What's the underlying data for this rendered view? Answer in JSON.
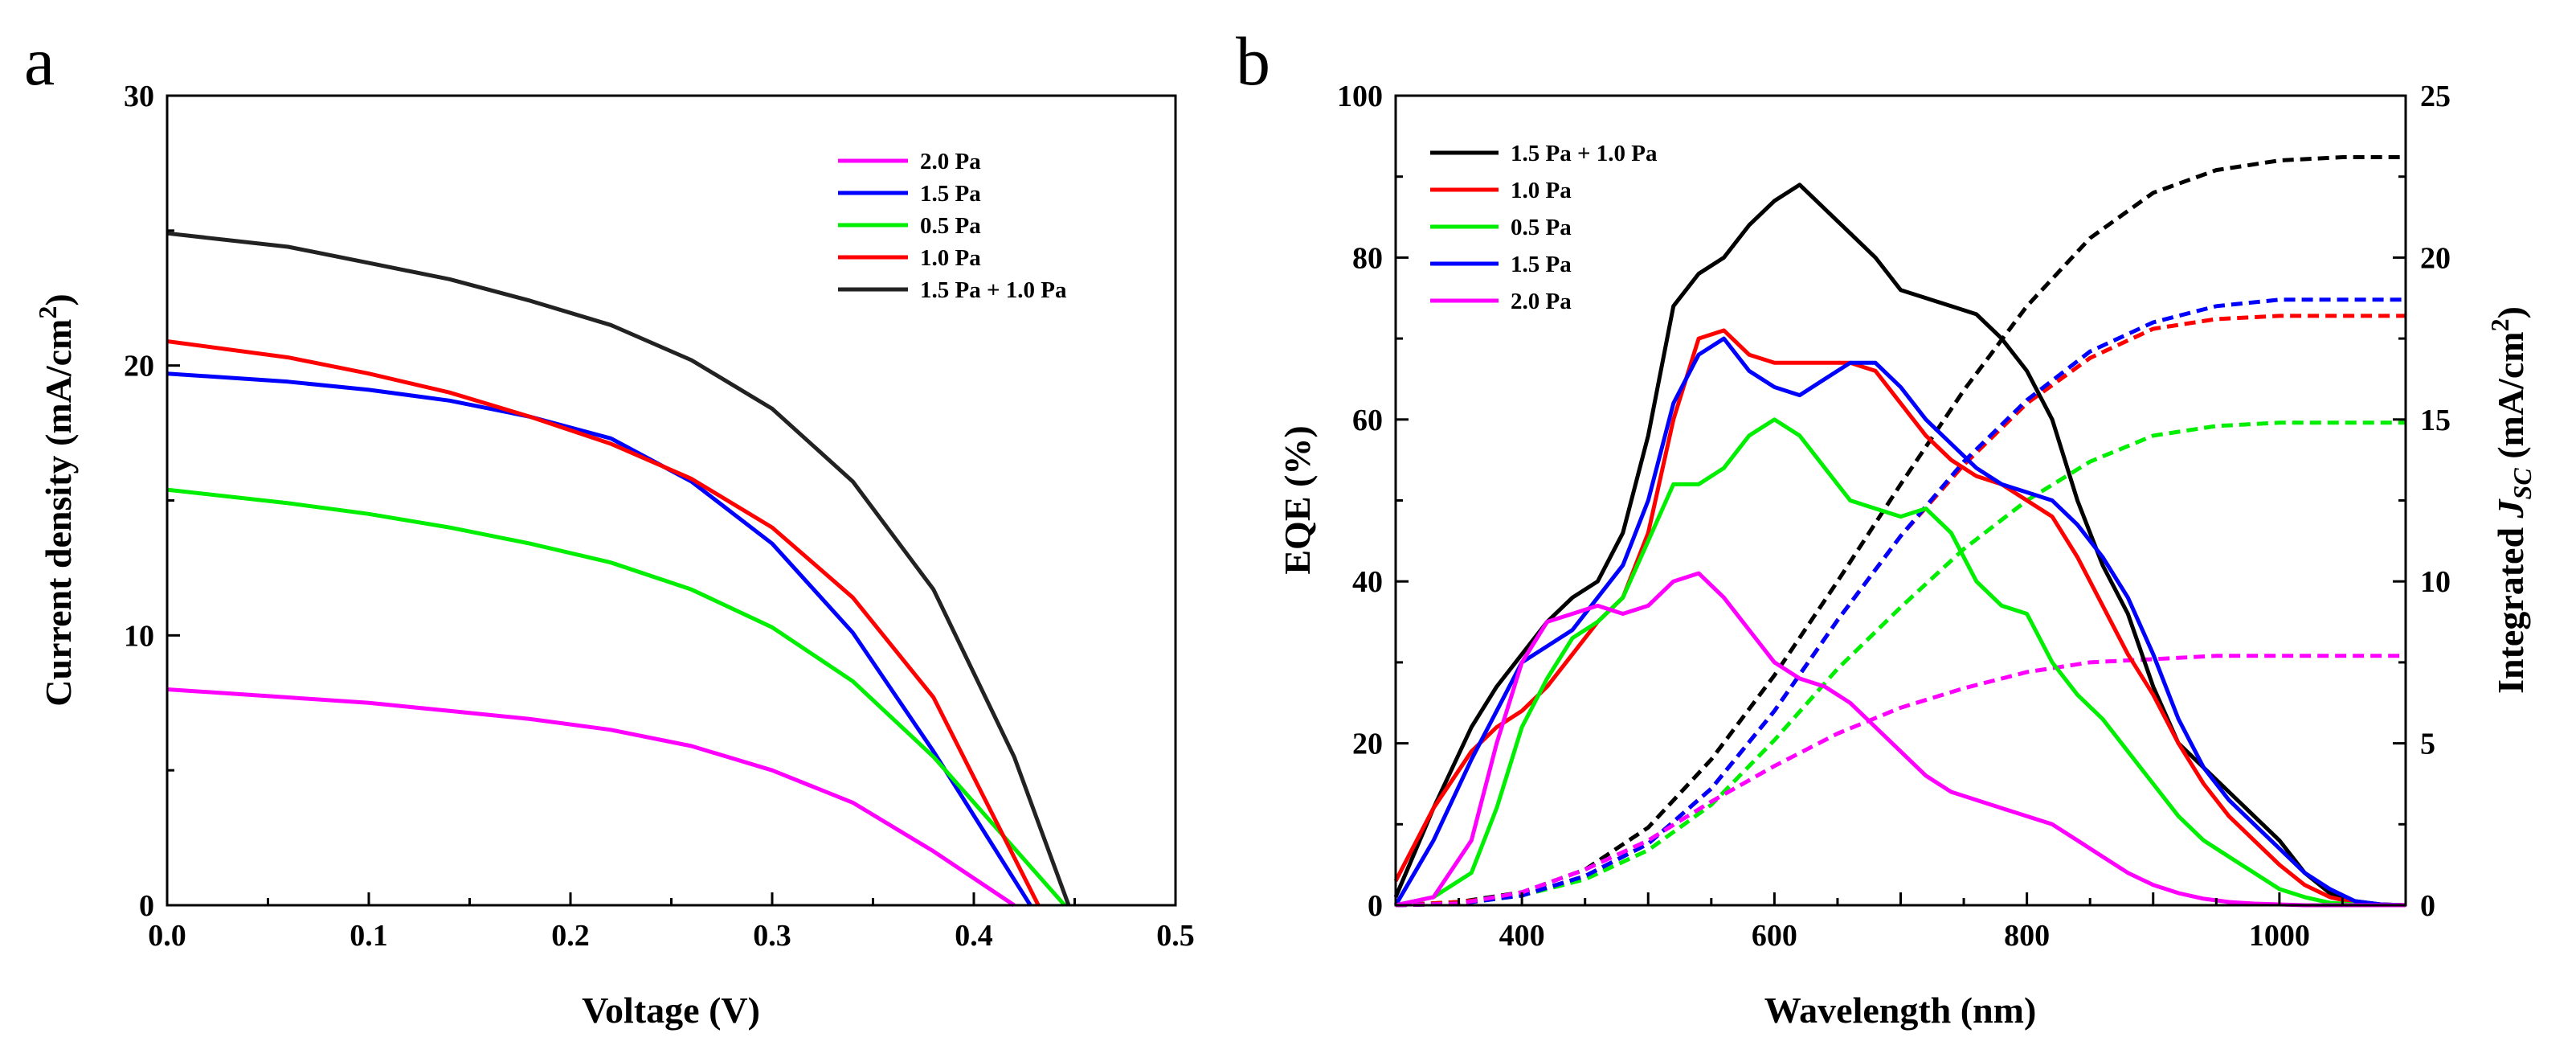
{
  "panels": [
    {
      "label": "a",
      "chart_data": {
        "type": "line",
        "title": "",
        "xlabel": "Voltage (V)",
        "ylabel": "Current density (mA/cm",
        "ylabel_sup": "2",
        "ylabel_end": ")",
        "xlim": [
          0,
          0.5
        ],
        "ylim": [
          0,
          30
        ],
        "xticks": [
          "0.0",
          "0.1",
          "0.2",
          "0.3",
          "0.4",
          "0.5"
        ],
        "yticks": [
          "0",
          "10",
          "20",
          "30"
        ],
        "legend_position": "top-right",
        "grid": false,
        "series": [
          {
            "name": "2.0 Pa",
            "color": "#ff00ff",
            "x": [
              0,
              0.06,
              0.1,
              0.14,
              0.18,
              0.22,
              0.26,
              0.3,
              0.34,
              0.38,
              0.42
            ],
            "y": [
              8.0,
              7.7,
              7.5,
              7.2,
              6.9,
              6.5,
              5.9,
              5.0,
              3.8,
              2.0,
              0
            ]
          },
          {
            "name": "1.5 Pa",
            "color": "#0000ff",
            "x": [
              0,
              0.06,
              0.1,
              0.14,
              0.18,
              0.22,
              0.26,
              0.3,
              0.34,
              0.38,
              0.428
            ],
            "y": [
              19.7,
              19.4,
              19.1,
              18.7,
              18.1,
              17.3,
              15.7,
              13.4,
              10.1,
              5.7,
              0
            ]
          },
          {
            "name": "0.5 Pa",
            "color": "#00ee00",
            "x": [
              0,
              0.06,
              0.1,
              0.14,
              0.18,
              0.22,
              0.26,
              0.3,
              0.34,
              0.38,
              0.445
            ],
            "y": [
              15.4,
              14.9,
              14.5,
              14.0,
              13.4,
              12.7,
              11.7,
              10.3,
              8.3,
              5.5,
              0
            ]
          },
          {
            "name": "1.0 Pa",
            "color": "#ff0000",
            "x": [
              0,
              0.06,
              0.1,
              0.14,
              0.18,
              0.22,
              0.26,
              0.3,
              0.34,
              0.38,
              0.432
            ],
            "y": [
              20.9,
              20.3,
              19.7,
              19.0,
              18.1,
              17.1,
              15.8,
              14.0,
              11.4,
              7.7,
              0
            ]
          },
          {
            "name": "1.5 Pa + 1.0 Pa",
            "color": "#222222",
            "x": [
              0,
              0.06,
              0.1,
              0.14,
              0.18,
              0.22,
              0.26,
              0.3,
              0.34,
              0.38,
              0.42,
              0.447
            ],
            "y": [
              24.9,
              24.4,
              23.8,
              23.2,
              22.4,
              21.5,
              20.2,
              18.4,
              15.7,
              11.7,
              5.5,
              0
            ]
          }
        ]
      }
    },
    {
      "label": "b",
      "chart_data": {
        "type": "line",
        "title": "",
        "xlabel": "Wavelength (nm)",
        "ylabel": "EQE (%)",
        "y2label_prefix": "Integrated ",
        "y2label_J": "J",
        "y2label_sub": "SC",
        "y2label_unit": " (mA/cm",
        "y2label_sup": "2",
        "y2label_end": ")",
        "xlim": [
          300,
          1100
        ],
        "ylim": [
          0,
          100
        ],
        "y2lim": [
          0,
          25
        ],
        "xticks": [
          "400",
          "600",
          "800",
          "1000"
        ],
        "yticks": [
          "0",
          "20",
          "40",
          "60",
          "80",
          "100"
        ],
        "y2ticks": [
          "0",
          "5",
          "10",
          "15",
          "20",
          "25"
        ],
        "legend_position": "top-left",
        "grid": false,
        "series": [
          {
            "name": "1.5 Pa + 1.0 Pa",
            "color": "#000000",
            "eqe_x": [
              300,
              330,
              360,
              380,
              400,
              420,
              440,
              460,
              480,
              500,
              520,
              540,
              560,
              580,
              600,
              620,
              640,
              660,
              680,
              700,
              720,
              740,
              760,
              780,
              800,
              820,
              840,
              860,
              880,
              900,
              920,
              940,
              960,
              980,
              1000,
              1020,
              1040,
              1060,
              1080,
              1100
            ],
            "eqe_y": [
              1,
              12,
              22,
              27,
              31,
              35,
              38,
              40,
              46,
              58,
              74,
              78,
              80,
              84,
              87,
              89,
              86,
              83,
              80,
              76,
              75,
              74,
              73,
              70,
              66,
              60,
              50,
              42,
              36,
              27,
              20,
              17,
              14,
              11,
              8,
              4,
              1.5,
              0.5,
              0.1,
              0
            ],
            "jsc_x": [
              300,
              350,
              400,
              450,
              500,
              550,
              600,
              650,
              700,
              750,
              800,
              850,
              900,
              950,
              1000,
              1050,
              1100
            ],
            "jsc_y": [
              0,
              0.1,
              0.4,
              1.1,
              2.4,
              4.5,
              7.1,
              10.0,
              13.0,
              15.9,
              18.5,
              20.6,
              22.0,
              22.7,
              23.0,
              23.1,
              23.1
            ]
          },
          {
            "name": "1.0 Pa",
            "color": "#ff0000",
            "eqe_x": [
              300,
              330,
              360,
              380,
              400,
              420,
              440,
              460,
              480,
              500,
              520,
              540,
              560,
              580,
              600,
              620,
              640,
              660,
              680,
              700,
              720,
              740,
              760,
              780,
              800,
              820,
              840,
              860,
              880,
              900,
              920,
              940,
              960,
              980,
              1000,
              1020,
              1040,
              1060,
              1080,
              1100
            ],
            "eqe_y": [
              3,
              12,
              19,
              22,
              24,
              27,
              31,
              35,
              38,
              46,
              60,
              70,
              71,
              68,
              67,
              67,
              67,
              67,
              66,
              62,
              58,
              55,
              53,
              52,
              50,
              48,
              43,
              37,
              31,
              26,
              20,
              15,
              11,
              8,
              5,
              2.5,
              1,
              0.3,
              0.1,
              0
            ],
            "jsc_x": [
              300,
              350,
              400,
              450,
              500,
              550,
              600,
              650,
              700,
              750,
              800,
              850,
              900,
              950,
              1000,
              1050,
              1100
            ],
            "jsc_y": [
              0,
              0.1,
              0.3,
              0.9,
              1.9,
              3.6,
              6.0,
              8.8,
              11.4,
              13.6,
              15.5,
              16.9,
              17.8,
              18.1,
              18.2,
              18.2,
              18.2
            ]
          },
          {
            "name": "0.5 Pa",
            "color": "#00ee00",
            "eqe_x": [
              300,
              330,
              360,
              380,
              400,
              420,
              440,
              460,
              480,
              500,
              520,
              540,
              560,
              580,
              600,
              620,
              640,
              660,
              680,
              700,
              720,
              740,
              760,
              780,
              800,
              820,
              840,
              860,
              880,
              900,
              920,
              940,
              960,
              980,
              1000,
              1020,
              1040,
              1060,
              1080,
              1100
            ],
            "eqe_y": [
              0,
              1,
              4,
              12,
              22,
              28,
              33,
              35,
              38,
              45,
              52,
              52,
              54,
              58,
              60,
              58,
              54,
              50,
              49,
              48,
              49,
              46,
              40,
              37,
              36,
              30,
              26,
              23,
              19,
              15,
              11,
              8,
              6,
              4,
              2,
              1,
              0.3,
              0.1,
              0,
              0
            ],
            "jsc_x": [
              300,
              350,
              400,
              450,
              500,
              550,
              600,
              650,
              700,
              750,
              800,
              850,
              900,
              950,
              1000,
              1050,
              1100
            ],
            "jsc_y": [
              0,
              0.05,
              0.3,
              0.8,
              1.7,
              3.1,
              5.1,
              7.3,
              9.2,
              11.0,
              12.5,
              13.7,
              14.5,
              14.8,
              14.9,
              14.9,
              14.9
            ]
          },
          {
            "name": "1.5 Pa",
            "color": "#0000ff",
            "eqe_x": [
              300,
              330,
              360,
              380,
              400,
              420,
              440,
              460,
              480,
              500,
              520,
              540,
              560,
              580,
              600,
              620,
              640,
              660,
              680,
              700,
              720,
              740,
              760,
              780,
              800,
              820,
              840,
              860,
              880,
              900,
              920,
              940,
              960,
              980,
              1000,
              1020,
              1040,
              1060,
              1080,
              1100
            ],
            "eqe_y": [
              0,
              8,
              18,
              24,
              30,
              32,
              34,
              38,
              42,
              50,
              62,
              68,
              70,
              66,
              64,
              63,
              65,
              67,
              67,
              64,
              60,
              57,
              54,
              52,
              51,
              50,
              47,
              43,
              38,
              31,
              23,
              17,
              13,
              10,
              7,
              4,
              2,
              0.5,
              0.1,
              0
            ],
            "jsc_x": [
              300,
              350,
              400,
              450,
              500,
              550,
              600,
              650,
              700,
              750,
              800,
              850,
              900,
              950,
              1000,
              1050,
              1100
            ],
            "jsc_y": [
              0,
              0.05,
              0.3,
              0.9,
              1.9,
              3.6,
              6.0,
              8.8,
              11.4,
              13.7,
              15.6,
              17.1,
              18.0,
              18.5,
              18.7,
              18.7,
              18.7
            ]
          },
          {
            "name": "2.0 Pa",
            "color": "#ff00ff",
            "eqe_x": [
              300,
              330,
              360,
              380,
              400,
              420,
              440,
              460,
              480,
              500,
              520,
              540,
              560,
              580,
              600,
              620,
              640,
              660,
              680,
              700,
              720,
              740,
              760,
              780,
              800,
              820,
              840,
              860,
              880,
              900,
              920,
              940,
              960,
              980,
              1000,
              1020,
              1040,
              1060,
              1080,
              1100
            ],
            "eqe_y": [
              0,
              1,
              8,
              20,
              30,
              35,
              36,
              37,
              36,
              37,
              40,
              41,
              38,
              34,
              30,
              28,
              27,
              25,
              22,
              19,
              16,
              14,
              13,
              12,
              11,
              10,
              8,
              6,
              4,
              2.5,
              1.5,
              0.8,
              0.4,
              0.2,
              0.1,
              0,
              0,
              0,
              0,
              0
            ],
            "jsc_x": [
              300,
              350,
              400,
              450,
              500,
              550,
              600,
              650,
              700,
              750,
              800,
              850,
              900,
              950,
              1000,
              1050,
              1100
            ],
            "jsc_y": [
              0,
              0.05,
              0.4,
              1.1,
              2.0,
              3.2,
              4.3,
              5.3,
              6.1,
              6.7,
              7.2,
              7.5,
              7.6,
              7.7,
              7.7,
              7.7,
              7.7
            ]
          }
        ]
      }
    }
  ]
}
